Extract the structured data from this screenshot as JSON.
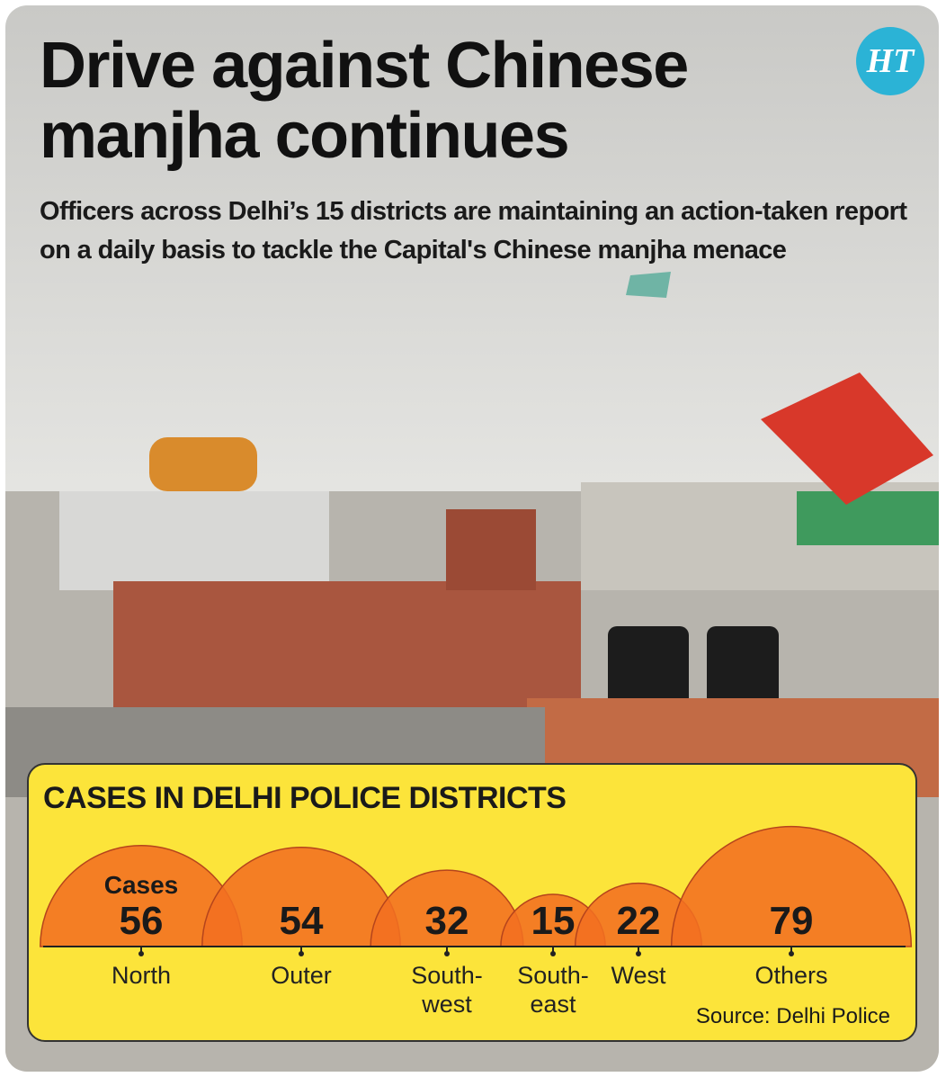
{
  "header": {
    "title": "Drive against Chinese manjha continues",
    "subtitle": "Officers across Delhi’s 15 districts are maintaining an action-taken report on a daily basis to tackle the Capital's Chinese manjha menace",
    "logo": "HT"
  },
  "chart_data": {
    "type": "semicircle",
    "title": "CASES IN DELHI POLICE DISTRICTS",
    "categories": [
      "North",
      "Outer",
      "South-\nwest",
      "South-\neast",
      "West",
      "Others"
    ],
    "values": [
      56,
      54,
      32,
      15,
      22,
      79
    ],
    "value_title": "Cases",
    "color": "#f36f21",
    "source": "Source: Delhi Police"
  }
}
